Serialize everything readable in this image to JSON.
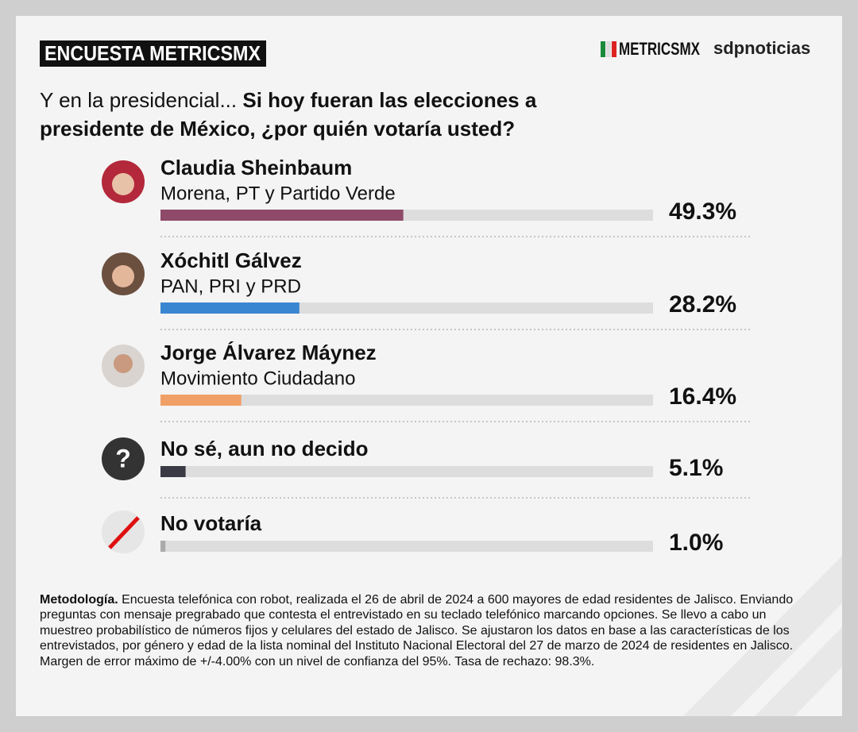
{
  "header": {
    "title": "ENCUESTA METRICSMX",
    "logos": [
      "METRICSMX",
      "sdpnoticias"
    ]
  },
  "chart_data": {
    "type": "bar",
    "orientation": "horizontal",
    "title_lead": "Y en la presidencial...",
    "title": "Si hoy fueran las elecciones a presidente de México, ¿por quién votaría usted?",
    "categories": [
      "Claudia Sheinbaum",
      "Xóchitl Gálvez",
      "Jorge Álvarez Máynez",
      "No sé, aun no decido",
      "No votaría"
    ],
    "subtitles": [
      "Morena, PT y Partido Verde",
      "PAN, PRI y PRD",
      "Movimiento Ciudadano",
      null,
      null
    ],
    "values": [
      49.3,
      28.2,
      16.4,
      5.1,
      1.0
    ],
    "value_labels": [
      "49.3%",
      "28.2%",
      "16.4%",
      "5.1%",
      "1.0%"
    ],
    "colors": [
      "#8e4a68",
      "#3b86d1",
      "#f0a066",
      "#3a3a44",
      "#aaaaaa"
    ],
    "xlim": [
      0,
      100
    ]
  },
  "footnote": {
    "label": "Metodología.",
    "text": "Encuesta telefónica con robot, realizada el 26 de abril de 2024 a 600 mayores de edad residentes de Jalisco. Enviando preguntas con mensaje pregrabado que contesta el entrevistado en su teclado telefónico marcando opciones. Se llevo a cabo un muestreo probabilístico de números fijos y celulares del estado de Jalisco. Se ajustaron los datos en base a las características de los entrevistados, por género y edad de la lista nominal del Instituto Nacional Electoral del 27 de marzo de 2024 de residentes en Jalisco. Margen de error máximo de +/-4.00% con un nivel de confianza del 95%. Tasa de rechazo: 98.3%."
  }
}
